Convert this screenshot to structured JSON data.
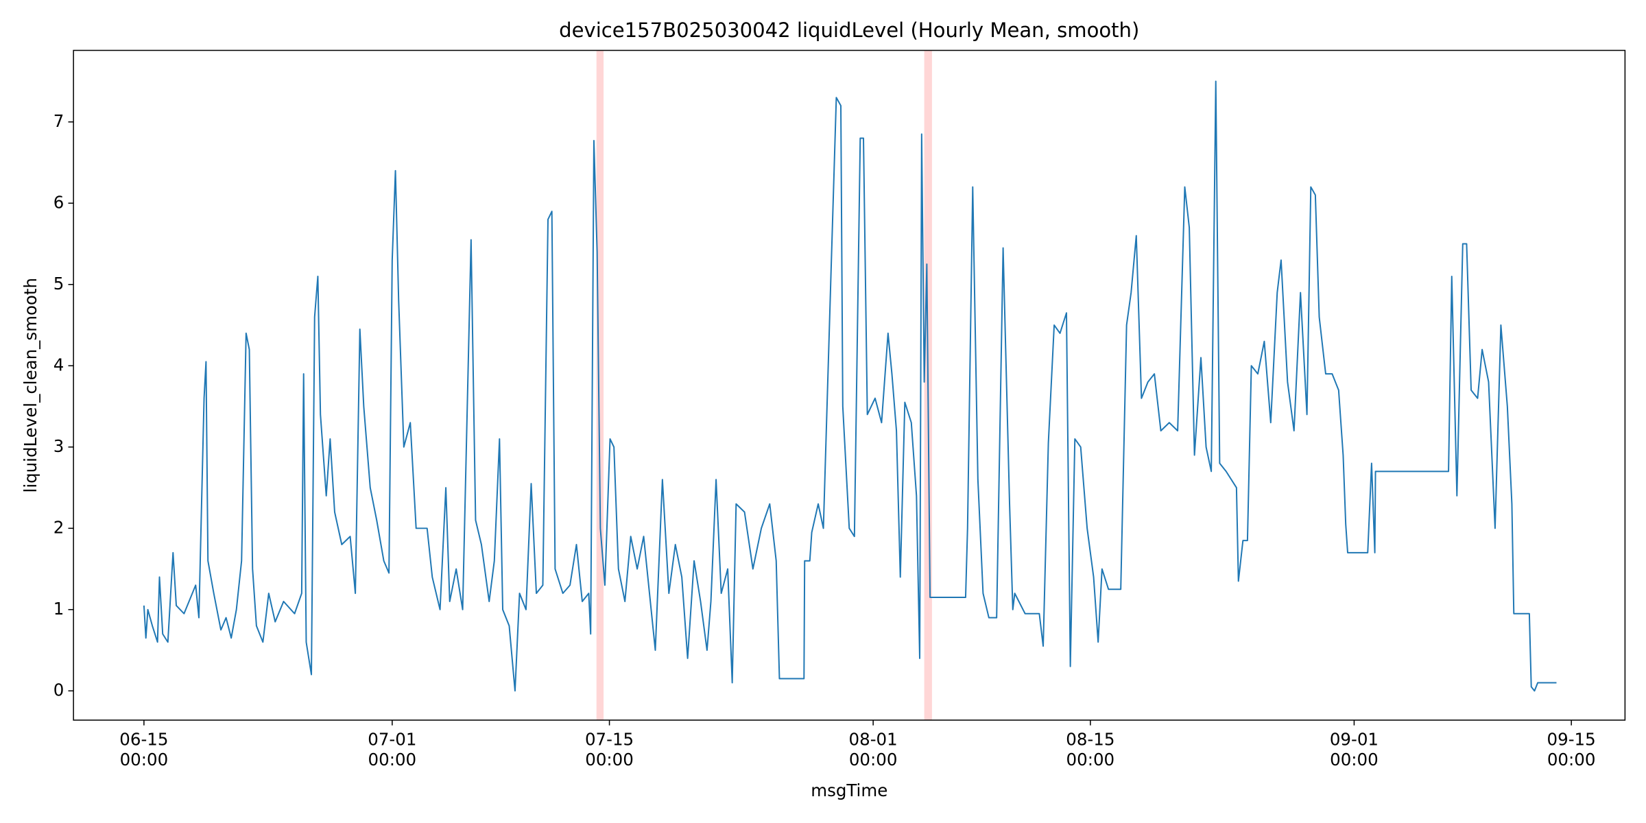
{
  "chart_data": {
    "type": "line",
    "title": "device157B025030042 liquidLevel (Hourly Mean, smooth)",
    "x_label": "msgTime",
    "y_label": "liquidLevel_clean_smooth",
    "color": "#1f77b4",
    "span_color": "#ff9999",
    "xlim": [
      "06-10 11:00",
      "09-18 11:00"
    ],
    "ylim": [
      -0.36,
      7.88
    ],
    "xticks": [
      {
        "value": "06-15 00:00",
        "label": "06-15\n00:00"
      },
      {
        "value": "07-01 00:00",
        "label": "07-01\n00:00"
      },
      {
        "value": "07-15 00:00",
        "label": "07-15\n00:00"
      },
      {
        "value": "08-01 00:00",
        "label": "08-01\n00:00"
      },
      {
        "value": "08-15 00:00",
        "label": "08-15\n00:00"
      },
      {
        "value": "09-01 00:00",
        "label": "09-01\n00:00"
      },
      {
        "value": "09-15 00:00",
        "label": "09-15\n00:00"
      }
    ],
    "yticks": [
      0,
      1,
      2,
      3,
      4,
      5,
      6,
      7
    ],
    "grid": false,
    "spans": [
      {
        "start": "07-14 04:00",
        "end": "07-14 15:00"
      },
      {
        "start": "08-04 07:00",
        "end": "08-04 19:00"
      }
    ],
    "x": [
      "06-15 00:00",
      "06-15 03:00",
      "06-15 06:00",
      "06-15 13:00",
      "06-15 21:00",
      "06-16 00:00",
      "06-16 05:00",
      "06-16 13:00",
      "06-16 21:00",
      "06-17 02:00",
      "06-17 14:00",
      "06-18 08:00",
      "06-18 13:00",
      "06-18 21:00",
      "06-19 00:00",
      "06-19 03:00",
      "06-19 12:00",
      "06-19 23:00",
      "06-20 07:00",
      "06-20 15:00",
      "06-20 23:00",
      "06-21 07:00",
      "06-21 14:00",
      "06-21 19:00",
      "06-22 00:00",
      "06-22 06:00",
      "06-22 16:00",
      "06-23 01:00",
      "06-23 11:00",
      "06-24 00:00",
      "06-24 17:00",
      "06-25 04:00",
      "06-25 07:00",
      "06-25 11:00",
      "06-25 19:00",
      "06-26 00:00",
      "06-26 05:00",
      "06-26 09:00",
      "06-26 18:00",
      "06-27 00:00",
      "06-27 07:00",
      "06-27 18:00",
      "06-28 07:00",
      "06-28 15:00",
      "06-28 22:00",
      "06-29 04:00",
      "06-29 14:00",
      "06-30 00:00",
      "06-30 11:00",
      "06-30 19:00",
      "07-01 00:00",
      "07-01 05:00",
      "07-01 10:00",
      "07-01 18:00",
      "07-02 04:00",
      "07-02 13:00",
      "07-03 06:00",
      "07-03 14:00",
      "07-04 02:00",
      "07-04 11:00",
      "07-04 17:00",
      "07-05 03:00",
      "07-05 13:00",
      "07-06 02:00",
      "07-06 09:00",
      "07-06 18:00",
      "07-07 06:00",
      "07-07 14:00",
      "07-07 22:00",
      "07-08 03:00",
      "07-08 13:00",
      "07-08 22:00",
      "07-09 05:00",
      "07-09 15:00",
      "07-09 23:00",
      "07-10 07:00",
      "07-10 17:00",
      "07-11 01:00",
      "07-11 07:00",
      "07-11 12:00",
      "07-12 00:00",
      "07-12 11:00",
      "07-12 21:00",
      "07-13 06:00",
      "07-13 16:00",
      "07-13 19:00",
      "07-14 00:00",
      "07-14 05:00",
      "07-14 10:00",
      "07-14 17:00",
      "07-15 01:00",
      "07-15 07:00",
      "07-15 14:00",
      "07-16 00:00",
      "07-16 09:00",
      "07-16 19:00",
      "07-17 05:00",
      "07-17 14:00",
      "07-17 23:00",
      "07-18 10:00",
      "07-18 20:00",
      "07-19 06:00",
      "07-19 16:00",
      "07-20 01:00",
      "07-20 11:00",
      "07-20 21:00",
      "07-21 07:00",
      "07-21 13:00",
      "07-21 21:00",
      "07-22 05:00",
      "07-22 15:00",
      "07-22 22:00",
      "07-23 04:00",
      "07-23 17:00",
      "07-24 06:00",
      "07-24 19:00",
      "07-25 08:00",
      "07-25 18:00",
      "07-25 23:00",
      "07-27 13:00",
      "07-27 14:00",
      "07-27 22:00",
      "07-28 01:00",
      "07-28 11:00",
      "07-28 19:00",
      "07-29 07:00",
      "07-29 15:00",
      "07-29 22:00",
      "07-30 01:00",
      "07-30 11:00",
      "07-30 19:00",
      "07-31 04:00",
      "07-31 09:00",
      "07-31 15:00",
      "08-01 03:00",
      "08-01 13:00",
      "08-01 23:00",
      "08-02 05:00",
      "08-02 12:00",
      "08-02 18:00",
      "08-03 01:00",
      "08-03 11:00",
      "08-03 19:00",
      "08-04 00:00",
      "08-04 03:00",
      "08-04 07:00",
      "08-04 11:00",
      "08-04 16:00",
      "08-06 23:00",
      "08-07 02:00",
      "08-07 10:00",
      "08-07 18:00",
      "08-08 02:00",
      "08-08 11:00",
      "08-08 23:00",
      "08-09 09:00",
      "08-09 19:00",
      "08-10 00:00",
      "08-10 03:00",
      "08-10 19:00",
      "08-11 17:00",
      "08-11 23:00",
      "08-12 07:00",
      "08-12 16:00",
      "08-13 01:00",
      "08-13 11:00",
      "08-13 17:00",
      "08-14 00:00",
      "08-14 09:00",
      "08-14 19:00",
      "08-15 05:00",
      "08-15 12:00",
      "08-15 18:00",
      "08-16 04:00",
      "08-16 23:00",
      "08-17 08:00",
      "08-17 15:00",
      "08-17 23:00",
      "08-18 07:00",
      "08-18 17:00",
      "08-19 03:00",
      "08-19 13:00",
      "08-20 02:00",
      "08-20 15:00",
      "08-21 02:00",
      "08-21 09:00",
      "08-21 17:00",
      "08-22 03:00",
      "08-22 11:00",
      "08-22 19:00",
      "08-23 02:00",
      "08-23 08:00",
      "08-23 18:00",
      "08-24 10:00",
      "08-24 13:00",
      "08-24 20:00",
      "08-25 03:00",
      "08-25 09:00",
      "08-25 19:00",
      "08-26 05:00",
      "08-26 15:00",
      "08-27 01:00",
      "08-27 07:00",
      "08-27 17:00",
      "08-28 03:00",
      "08-28 13:00",
      "08-28 23:00",
      "08-29 05:00",
      "08-29 12:00",
      "08-29 18:00",
      "08-30 04:00",
      "08-30 14:00",
      "08-31 00:00",
      "08-31 07:00",
      "08-31 11:00",
      "08-31 14:00",
      "09-01 21:00",
      "09-02 03:00",
      "09-02 08:00",
      "09-02 09:00",
      "09-07 02:00",
      "09-07 07:00",
      "09-07 15:00",
      "09-08 00:00",
      "09-08 06:00",
      "09-08 13:00",
      "09-08 23:00",
      "09-09 06:00",
      "09-09 16:00",
      "09-10 02:00",
      "09-10 11:00",
      "09-10 21:00",
      "09-11 04:00",
      "09-11 07:00",
      "09-12 07:00",
      "09-12 10:00",
      "09-12 15:00",
      "09-12 20:00",
      "09-14 01:00"
    ],
    "values": [
      1.05,
      0.65,
      1.0,
      0.8,
      0.6,
      1.4,
      0.7,
      0.6,
      1.7,
      1.05,
      0.95,
      1.3,
      0.9,
      3.6,
      4.05,
      1.6,
      1.2,
      0.75,
      0.9,
      0.65,
      1.0,
      1.6,
      4.4,
      4.2,
      1.5,
      0.8,
      0.6,
      1.2,
      0.85,
      1.1,
      0.95,
      1.2,
      3.9,
      0.6,
      0.2,
      4.6,
      5.1,
      3.4,
      2.4,
      3.1,
      2.2,
      1.8,
      1.9,
      1.2,
      4.45,
      3.5,
      2.5,
      2.1,
      1.6,
      1.45,
      5.3,
      6.4,
      4.8,
      3.0,
      3.3,
      2.0,
      2.0,
      1.4,
      1.0,
      2.5,
      1.1,
      1.5,
      1.0,
      5.55,
      2.1,
      1.8,
      1.1,
      1.6,
      3.1,
      1.0,
      0.8,
      0.0,
      1.2,
      1.0,
      2.55,
      1.2,
      1.3,
      5.8,
      5.9,
      1.5,
      1.2,
      1.3,
      1.8,
      1.1,
      1.2,
      0.7,
      6.77,
      5.4,
      2.0,
      1.3,
      3.1,
      3.0,
      1.5,
      1.1,
      1.9,
      1.5,
      1.9,
      1.2,
      0.5,
      2.6,
      1.2,
      1.8,
      1.4,
      0.4,
      1.6,
      1.1,
      0.5,
      1.1,
      2.6,
      1.2,
      1.5,
      0.1,
      2.3,
      2.2,
      1.5,
      2.0,
      2.3,
      1.6,
      0.15,
      0.15,
      1.6,
      1.6,
      1.95,
      2.3,
      2.0,
      5.2,
      7.3,
      7.2,
      3.5,
      2.0,
      1.9,
      6.8,
      6.8,
      3.4,
      3.6,
      3.3,
      4.4,
      3.9,
      3.2,
      1.4,
      3.55,
      3.3,
      2.4,
      0.4,
      6.85,
      3.8,
      5.25,
      1.15,
      1.15,
      2.0,
      6.2,
      2.6,
      1.2,
      0.9,
      0.9,
      5.45,
      2.3,
      1.0,
      1.2,
      0.95,
      0.95,
      0.55,
      3.05,
      4.5,
      4.4,
      4.65,
      0.3,
      3.1,
      3.0,
      2.0,
      1.4,
      0.6,
      1.5,
      1.25,
      1.25,
      4.5,
      4.9,
      5.6,
      3.6,
      3.8,
      3.9,
      3.2,
      3.3,
      3.2,
      6.2,
      5.7,
      2.9,
      4.1,
      3.0,
      2.7,
      7.5,
      2.8,
      2.7,
      2.5,
      1.35,
      1.85,
      1.85,
      4.0,
      3.9,
      4.3,
      3.3,
      4.9,
      5.3,
      3.8,
      3.2,
      4.9,
      3.4,
      6.2,
      6.1,
      4.6,
      3.9,
      3.9,
      3.7,
      2.9,
      2.05,
      1.7,
      1.7,
      2.8,
      1.7,
      2.7,
      2.7,
      5.1,
      2.4,
      5.5,
      5.5,
      3.7,
      3.6,
      4.2,
      3.8,
      2.0,
      4.5,
      3.5,
      2.3,
      0.95,
      0.95,
      0.05,
      0.0,
      0.1,
      0.1
    ]
  }
}
